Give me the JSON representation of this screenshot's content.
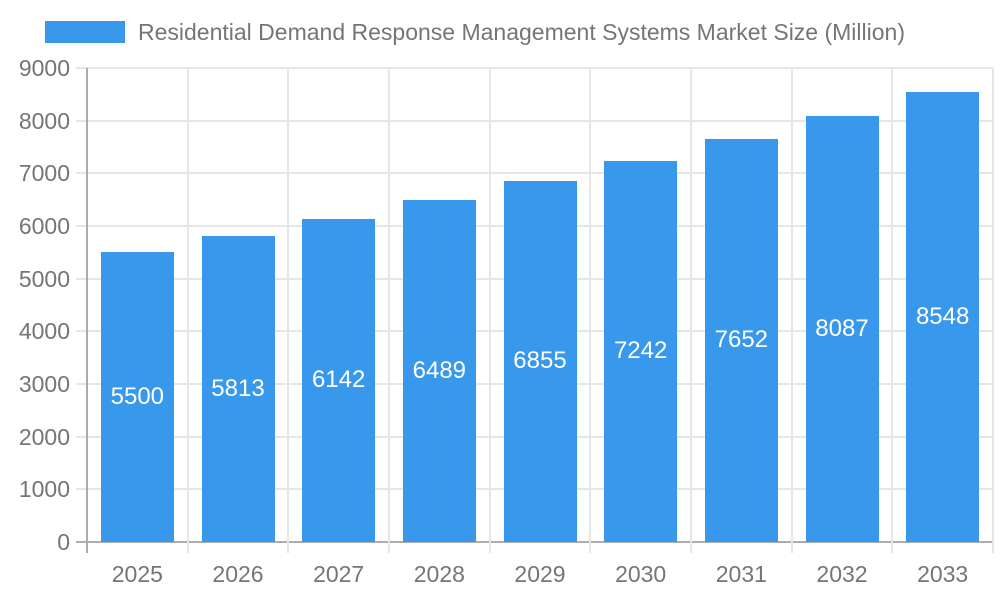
{
  "chart_data": {
    "type": "bar",
    "title": "Residential Demand Response Management Systems Market Size (Million)",
    "categories": [
      "2025",
      "2026",
      "2027",
      "2028",
      "2029",
      "2030",
      "2031",
      "2032",
      "2033"
    ],
    "values": [
      5500,
      5813,
      6142,
      6489,
      6855,
      7242,
      7652,
      8087,
      8548
    ],
    "value_labels": [
      "5500",
      "5813",
      "6142",
      "6489",
      "6855",
      "7242",
      "7652",
      "8087",
      "8548"
    ],
    "xlabel": "",
    "ylabel": "",
    "ylim": [
      0,
      9000
    ],
    "y_ticks": [
      0,
      1000,
      2000,
      3000,
      4000,
      5000,
      6000,
      7000,
      8000,
      9000
    ],
    "grid": "horizontal and vertical gridlines on",
    "legend_position": "top-left",
    "value_label_position": "centered inside bars",
    "colors": {
      "bar": "#3898EC",
      "value_label": "#FFFFFF",
      "axis_text": "#757575",
      "title_text": "#757575",
      "gridline": "#E6E6E6",
      "axis_line": "#ABABAB",
      "background": "#FFFFFF"
    }
  }
}
